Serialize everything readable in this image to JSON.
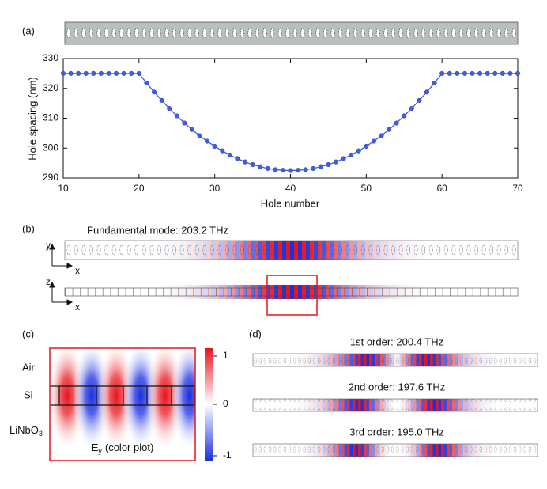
{
  "chart_data": {
    "type": "line",
    "panel_label": "(a)",
    "xlabel": "Hole number",
    "ylabel": "Hole spacing (nm)",
    "x": [
      10,
      11,
      12,
      13,
      14,
      15,
      16,
      17,
      18,
      19,
      20,
      21,
      22,
      23,
      24,
      25,
      26,
      27,
      28,
      29,
      30,
      31,
      32,
      33,
      34,
      35,
      36,
      37,
      38,
      39,
      40,
      41,
      42,
      43,
      44,
      45,
      46,
      47,
      48,
      49,
      50,
      51,
      52,
      53,
      54,
      55,
      56,
      57,
      58,
      59,
      60,
      61,
      62,
      63,
      64,
      65,
      66,
      67,
      68,
      69,
      70
    ],
    "values": [
      325,
      325,
      325,
      325,
      325,
      325,
      325,
      325,
      325,
      325,
      325,
      321.8,
      318.8,
      316.0,
      313.3,
      310.8,
      308.4,
      306.2,
      304.2,
      302.3,
      300.6,
      299.1,
      297.7,
      296.5,
      295.4,
      294.5,
      293.8,
      293.2,
      292.8,
      292.6,
      292.5,
      292.6,
      292.8,
      293.2,
      293.8,
      294.5,
      295.4,
      296.5,
      297.7,
      299.1,
      300.6,
      302.3,
      304.2,
      306.2,
      308.4,
      310.8,
      313.3,
      316.0,
      318.8,
      321.8,
      325,
      325,
      325,
      325,
      325,
      325,
      325,
      325,
      325,
      325,
      325
    ],
    "color": "#3d5ee0",
    "xlim": [
      10,
      70
    ],
    "xticks": [
      10,
      20,
      30,
      40,
      50,
      60,
      70
    ],
    "ylim": [
      290,
      330
    ],
    "yticks": [
      290,
      300,
      310,
      320,
      330
    ]
  },
  "panel_b": {
    "label": "(b)",
    "title": "Fundamental mode: 203.2 THz",
    "axes_top": [
      "y",
      "x"
    ],
    "axes_bottom": [
      "z",
      "x"
    ]
  },
  "panel_c": {
    "label": "(c)",
    "layers": [
      "Air",
      "Si"
    ],
    "substrate": {
      "text": "LiNbO",
      "sub": "3"
    },
    "caption": {
      "text": "E",
      "sub": "y",
      "rest": "(color plot)"
    },
    "colorbar": {
      "lim": [
        -1,
        1
      ],
      "ticks": [
        1,
        0,
        -1
      ]
    }
  },
  "panel_d": {
    "label": "(d)",
    "modes": [
      "1st order: 200.4 THz",
      "2nd order: 197.6 THz",
      "3rd order: 195.0 THz"
    ]
  }
}
